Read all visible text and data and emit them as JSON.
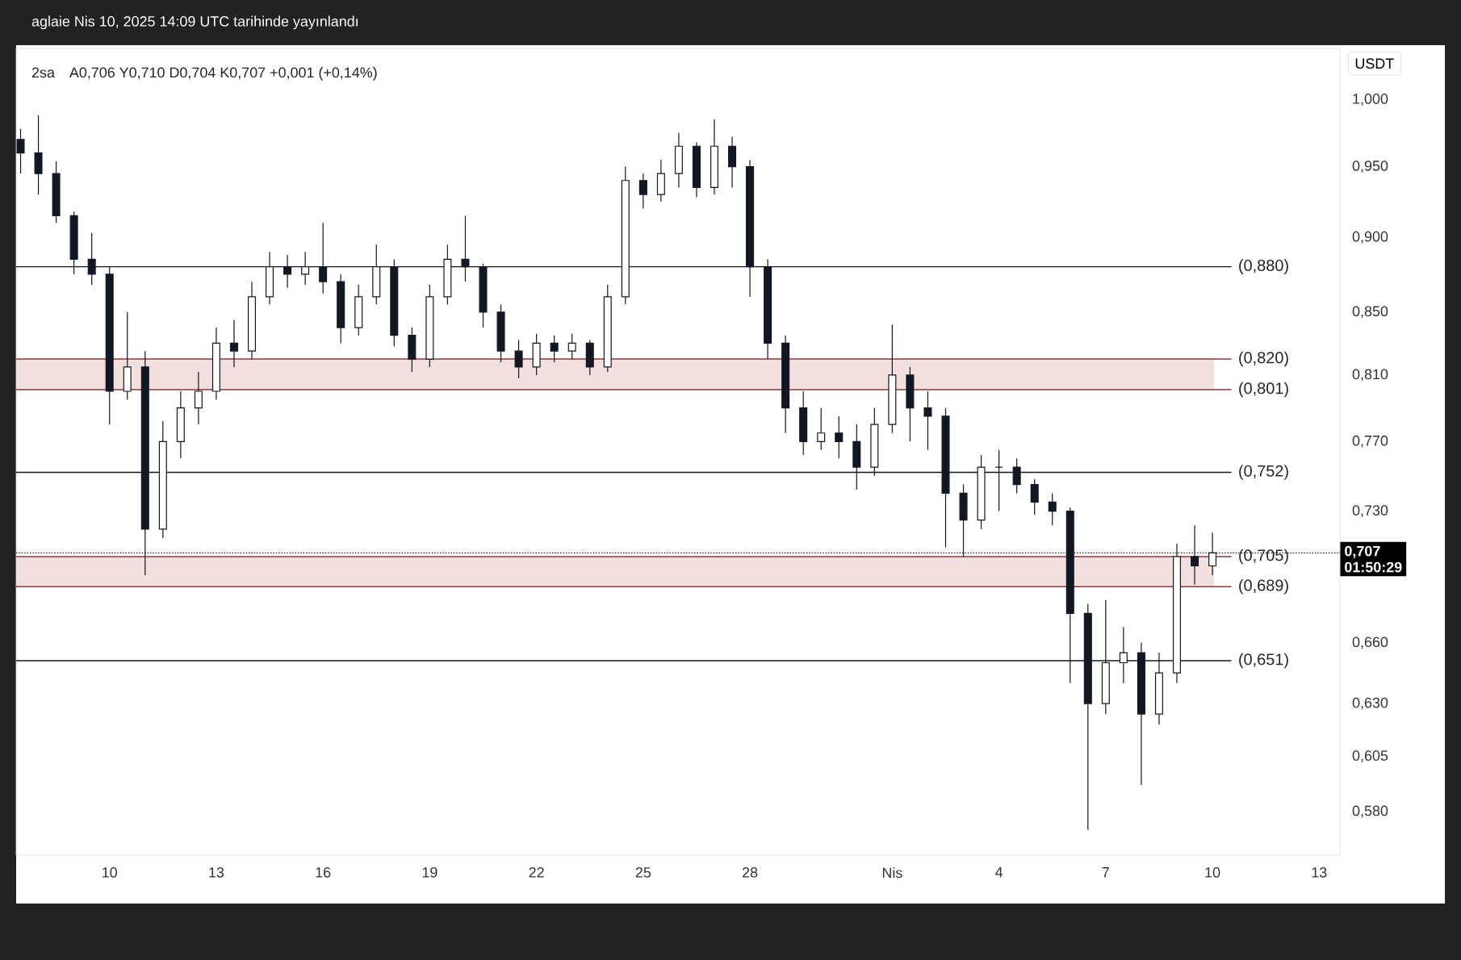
{
  "chart_data": {
    "type": "candlestick",
    "title": "2sa",
    "subtitle": "A0,706 Y0,710 D0,704 K0,707 +0,001 (+0,14%)",
    "ylabel": "USDT",
    "annotations": [
      "aglaie Nis 10, 2025 14:09 UTC tarihinde yayınlandı",
      "01:50:29"
    ],
    "color": "#131722",
    "log": "y",
    "x": [
      "2025-03-07T12:00",
      "2025-03-08",
      "2025-03-08T12:00",
      "2025-03-09",
      "2025-03-09T12:00",
      "2025-03-10",
      "2025-03-10T12:00",
      "2025-03-11",
      "2025-03-11T12:00",
      "2025-03-12",
      "2025-03-12T12:00",
      "2025-03-13",
      "2025-03-13T12:00",
      "2025-03-14",
      "2025-03-14T12:00",
      "2025-03-15",
      "2025-03-15T12:00",
      "2025-03-16",
      "2025-03-16T12:00",
      "2025-03-17",
      "2025-03-17T12:00",
      "2025-03-18",
      "2025-03-18T12:00",
      "2025-03-19",
      "2025-03-19T12:00",
      "2025-03-20",
      "2025-03-20T12:00",
      "2025-03-21",
      "2025-03-21T12:00",
      "2025-03-22",
      "2025-03-22T12:00",
      "2025-03-23",
      "2025-03-23T12:00",
      "2025-03-24",
      "2025-03-24T12:00",
      "2025-03-25",
      "2025-03-25T12:00",
      "2025-03-26",
      "2025-03-26T12:00",
      "2025-03-27",
      "2025-03-27T12:00",
      "2025-03-28",
      "2025-03-28T12:00",
      "2025-03-29",
      "2025-03-29T12:00",
      "2025-03-30",
      "2025-03-30T12:00",
      "2025-03-31",
      "2025-03-31T12:00",
      "2025-04-01",
      "2025-04-01T12:00",
      "2025-04-02",
      "2025-04-02T12:00",
      "2025-04-03",
      "2025-04-03T12:00",
      "2025-04-04",
      "2025-04-04T12:00",
      "2025-04-05",
      "2025-04-05T12:00",
      "2025-04-06",
      "2025-04-06T12:00",
      "2025-04-07",
      "2025-04-07T12:00",
      "2025-04-08",
      "2025-04-08T12:00",
      "2025-04-09",
      "2025-04-09T12:00",
      "2025-04-10"
    ],
    "ohlc": [
      [
        0.97,
        0.978,
        0.945,
        0.96
      ],
      [
        0.96,
        0.988,
        0.93,
        0.945
      ],
      [
        0.945,
        0.954,
        0.91,
        0.915
      ],
      [
        0.915,
        0.918,
        0.875,
        0.885
      ],
      [
        0.885,
        0.903,
        0.868,
        0.875
      ],
      [
        0.875,
        0.88,
        0.78,
        0.8
      ],
      [
        0.8,
        0.85,
        0.795,
        0.815
      ],
      [
        0.815,
        0.825,
        0.695,
        0.72
      ],
      [
        0.72,
        0.782,
        0.715,
        0.77
      ],
      [
        0.77,
        0.8,
        0.76,
        0.79
      ],
      [
        0.79,
        0.812,
        0.78,
        0.8
      ],
      [
        0.8,
        0.84,
        0.795,
        0.83
      ],
      [
        0.83,
        0.845,
        0.815,
        0.825
      ],
      [
        0.825,
        0.87,
        0.82,
        0.86
      ],
      [
        0.86,
        0.89,
        0.855,
        0.88
      ],
      [
        0.88,
        0.888,
        0.866,
        0.875
      ],
      [
        0.875,
        0.89,
        0.868,
        0.88
      ],
      [
        0.88,
        0.91,
        0.862,
        0.87
      ],
      [
        0.87,
        0.875,
        0.83,
        0.84
      ],
      [
        0.84,
        0.868,
        0.835,
        0.86
      ],
      [
        0.86,
        0.895,
        0.855,
        0.88
      ],
      [
        0.88,
        0.885,
        0.828,
        0.835
      ],
      [
        0.835,
        0.84,
        0.812,
        0.82
      ],
      [
        0.82,
        0.868,
        0.815,
        0.86
      ],
      [
        0.86,
        0.895,
        0.855,
        0.885
      ],
      [
        0.885,
        0.915,
        0.87,
        0.88
      ],
      [
        0.88,
        0.882,
        0.84,
        0.85
      ],
      [
        0.85,
        0.855,
        0.818,
        0.825
      ],
      [
        0.825,
        0.832,
        0.808,
        0.815
      ],
      [
        0.815,
        0.836,
        0.81,
        0.83
      ],
      [
        0.83,
        0.835,
        0.818,
        0.825
      ],
      [
        0.825,
        0.836,
        0.82,
        0.83
      ],
      [
        0.83,
        0.832,
        0.81,
        0.815
      ],
      [
        0.815,
        0.868,
        0.812,
        0.86
      ],
      [
        0.86,
        0.95,
        0.855,
        0.94
      ],
      [
        0.94,
        0.945,
        0.92,
        0.93
      ],
      [
        0.93,
        0.955,
        0.925,
        0.945
      ],
      [
        0.945,
        0.975,
        0.935,
        0.965
      ],
      [
        0.965,
        0.968,
        0.928,
        0.935
      ],
      [
        0.935,
        0.985,
        0.93,
        0.965
      ],
      [
        0.965,
        0.972,
        0.935,
        0.95
      ],
      [
        0.95,
        0.955,
        0.86,
        0.88
      ],
      [
        0.88,
        0.885,
        0.82,
        0.83
      ],
      [
        0.83,
        0.835,
        0.775,
        0.79
      ],
      [
        0.79,
        0.8,
        0.762,
        0.77
      ],
      [
        0.77,
        0.79,
        0.765,
        0.775
      ],
      [
        0.775,
        0.785,
        0.76,
        0.77
      ],
      [
        0.77,
        0.78,
        0.742,
        0.755
      ],
      [
        0.755,
        0.79,
        0.75,
        0.78
      ],
      [
        0.78,
        0.842,
        0.775,
        0.81
      ],
      [
        0.81,
        0.815,
        0.77,
        0.79
      ],
      [
        0.79,
        0.8,
        0.765,
        0.785
      ],
      [
        0.785,
        0.79,
        0.71,
        0.74
      ],
      [
        0.74,
        0.745,
        0.705,
        0.725
      ],
      [
        0.725,
        0.762,
        0.72,
        0.755
      ],
      [
        0.755,
        0.765,
        0.73,
        0.755
      ],
      [
        0.755,
        0.76,
        0.74,
        0.745
      ],
      [
        0.745,
        0.748,
        0.728,
        0.735
      ],
      [
        0.735,
        0.74,
        0.722,
        0.73
      ],
      [
        0.73,
        0.732,
        0.64,
        0.675
      ],
      [
        0.675,
        0.68,
        0.572,
        0.63
      ],
      [
        0.63,
        0.682,
        0.625,
        0.65
      ],
      [
        0.65,
        0.668,
        0.64,
        0.655
      ],
      [
        0.655,
        0.66,
        0.592,
        0.625
      ],
      [
        0.625,
        0.655,
        0.62,
        0.645
      ],
      [
        0.645,
        0.712,
        0.64,
        0.705
      ],
      [
        0.705,
        0.722,
        0.69,
        0.7
      ],
      [
        0.7,
        0.718,
        0.695,
        0.707
      ]
    ],
    "xlim": [
      "2025-03-07T09:00",
      "2025-04-13T14:00"
    ],
    "xticks": [
      {
        "value": "2025-03-10",
        "label": "10"
      },
      {
        "value": "2025-03-13",
        "label": "13"
      },
      {
        "value": "2025-03-16",
        "label": "16"
      },
      {
        "value": "2025-03-19",
        "label": "19"
      },
      {
        "value": "2025-03-22",
        "label": "22"
      },
      {
        "value": "2025-03-25",
        "label": "25"
      },
      {
        "value": "2025-03-28",
        "label": "28"
      },
      {
        "value": "2025-04-01",
        "label": "Nis"
      },
      {
        "value": "2025-04-04",
        "label": "4"
      },
      {
        "value": "2025-04-07",
        "label": "7"
      },
      {
        "value": "2025-04-10",
        "label": "10"
      },
      {
        "value": "2025-04-13",
        "label": "13"
      }
    ],
    "ylim": [
      0.561,
      1.04
    ],
    "yticks": [
      {
        "value": 1.0,
        "label": "1,000"
      },
      {
        "value": 0.95,
        "label": "0,950"
      },
      {
        "value": 0.9,
        "label": "0,900"
      },
      {
        "value": 0.85,
        "label": "0,850"
      },
      {
        "value": 0.81,
        "label": "0,810"
      },
      {
        "value": 0.77,
        "label": "0,770"
      },
      {
        "value": 0.73,
        "label": "0,730"
      },
      {
        "value": 0.66,
        "label": "0,660"
      },
      {
        "value": 0.63,
        "label": "0,630"
      },
      {
        "value": 0.605,
        "label": "0,605"
      },
      {
        "value": 0.58,
        "label": "0,580"
      }
    ],
    "bands": [
      {
        "axis": "y",
        "from": 0.801,
        "to": 0.82,
        "color": "#f2dfdf"
      },
      {
        "axis": "y",
        "from": 0.689,
        "to": 0.705,
        "color": "#f2dfdf"
      }
    ],
    "ref_lines": [
      {
        "axis": "y",
        "value": 0.88,
        "label": "(0,880)",
        "color": "#131722"
      },
      {
        "axis": "y",
        "value": 0.82,
        "label": "(0,820)",
        "color": "#8b3a3a"
      },
      {
        "axis": "y",
        "value": 0.801,
        "label": "(0,801)",
        "color": "#8b3a3a"
      },
      {
        "axis": "y",
        "value": 0.752,
        "label": "(0,752)",
        "color": "#131722"
      },
      {
        "axis": "y",
        "value": 0.705,
        "label": "(0,705)",
        "color": "#8b3a3a"
      },
      {
        "axis": "y",
        "value": 0.689,
        "label": "(0,689)",
        "color": "#8b3a3a"
      },
      {
        "axis": "y",
        "value": 0.651,
        "label": "(0,651)",
        "color": "#131722"
      },
      {
        "axis": "y",
        "value": 0.707,
        "label": "0,707",
        "color": "#131722",
        "line_style": "dotted"
      }
    ]
  }
}
